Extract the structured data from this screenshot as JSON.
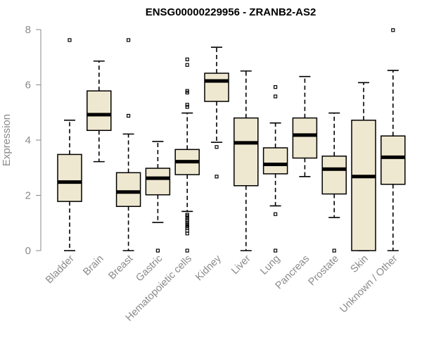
{
  "chart_data": {
    "type": "boxplot",
    "title": "ENSG00000229956 - ZRANB2-AS2",
    "xlabel": "",
    "ylabel": "Expression",
    "ylim": [
      0,
      8
    ],
    "yticks": [
      0,
      2,
      4,
      6,
      8
    ],
    "grid": false,
    "box_color": "#efe8d0",
    "categories": [
      "Bladder",
      "Brain",
      "Breast",
      "Gastric",
      "Hematopoietic cells",
      "Kidney",
      "Liver",
      "Lung",
      "Pancreas",
      "Prostate",
      "Skin",
      "Unknown / Other"
    ],
    "boxes": [
      {
        "min": 0.0,
        "q1": 1.78,
        "median": 2.48,
        "q3": 3.48,
        "max": 4.72,
        "outliers": [
          7.62
        ]
      },
      {
        "min": 3.22,
        "q1": 4.35,
        "median": 4.92,
        "q3": 5.78,
        "max": 6.86,
        "outliers": []
      },
      {
        "min": 0.0,
        "q1": 1.6,
        "median": 2.12,
        "q3": 2.82,
        "max": 4.22,
        "outliers": [
          4.88,
          7.62
        ]
      },
      {
        "min": 1.02,
        "q1": 2.02,
        "median": 2.62,
        "q3": 2.98,
        "max": 3.95,
        "outliers": [
          0.0
        ]
      },
      {
        "min": 1.42,
        "q1": 2.75,
        "median": 3.22,
        "q3": 3.66,
        "max": 4.98,
        "outliers": [
          0.0,
          0.62,
          0.72,
          0.82,
          0.88,
          0.95,
          1.02,
          1.1,
          1.18,
          1.25,
          1.3,
          5.2,
          5.28,
          5.72,
          5.78,
          6.72,
          6.92
        ]
      },
      {
        "min": 3.92,
        "q1": 5.4,
        "median": 6.14,
        "q3": 6.42,
        "max": 7.36,
        "outliers": [
          2.68,
          3.75
        ]
      },
      {
        "min": 0.0,
        "q1": 2.35,
        "median": 3.9,
        "q3": 4.8,
        "max": 6.5,
        "outliers": []
      },
      {
        "min": 1.62,
        "q1": 2.78,
        "median": 3.12,
        "q3": 3.72,
        "max": 4.62,
        "outliers": [
          0.0,
          1.32,
          5.58,
          5.92
        ]
      },
      {
        "min": 2.68,
        "q1": 3.35,
        "median": 4.18,
        "q3": 4.8,
        "max": 6.3,
        "outliers": []
      },
      {
        "min": 1.2,
        "q1": 2.05,
        "median": 2.95,
        "q3": 3.42,
        "max": 4.98,
        "outliers": [
          0.0
        ]
      },
      {
        "min": 0.0,
        "q1": 0.0,
        "median": 2.68,
        "q3": 4.72,
        "max": 6.08,
        "outliers": []
      },
      {
        "min": 0.0,
        "q1": 2.4,
        "median": 3.38,
        "q3": 4.15,
        "max": 6.52,
        "outliers": [
          7.98
        ]
      }
    ]
  }
}
